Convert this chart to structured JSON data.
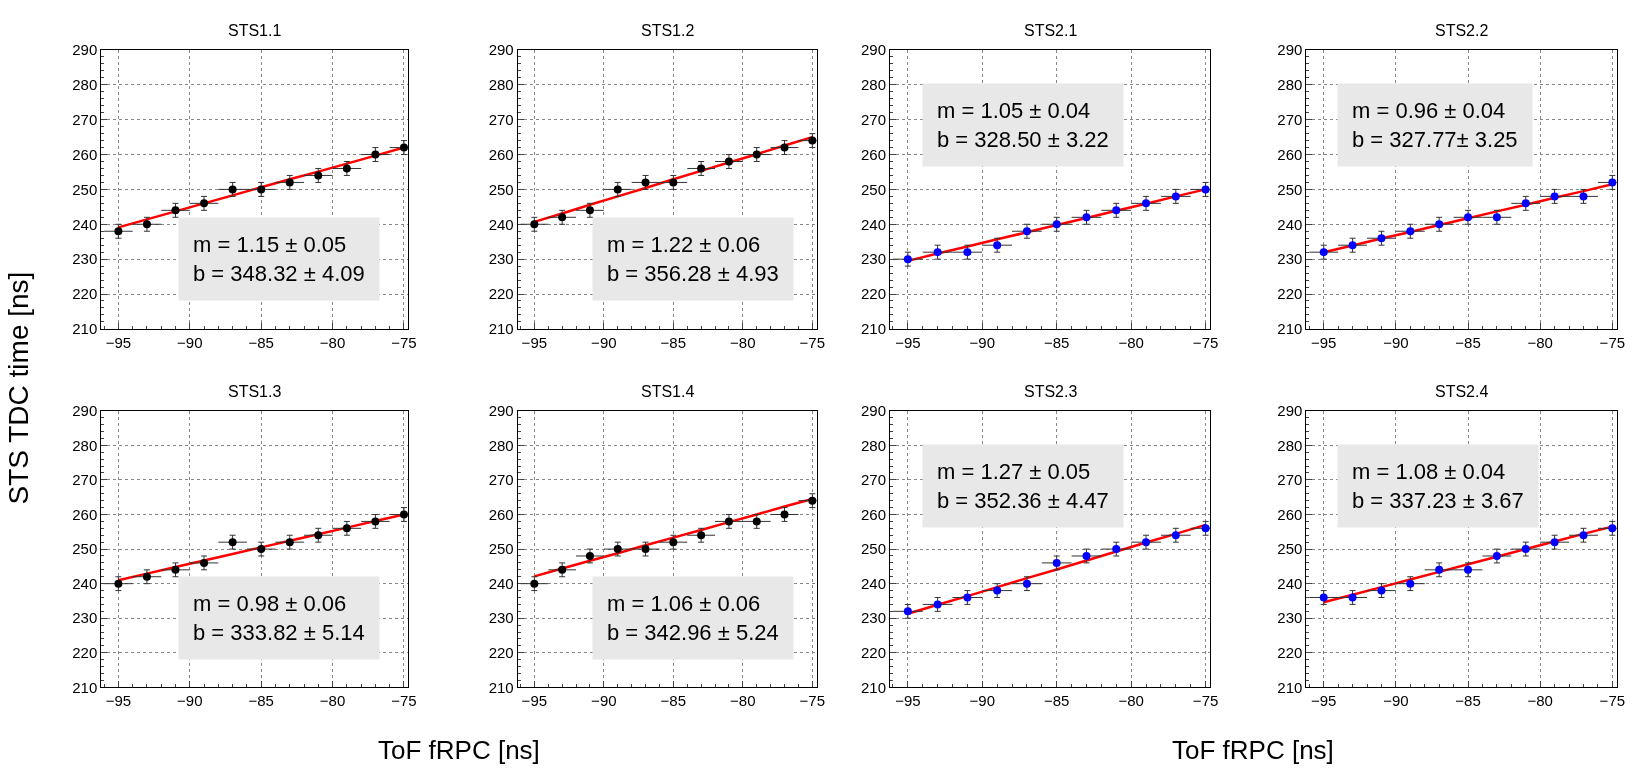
{
  "chart_data": [
    {
      "type": "scatter",
      "title": "STS1.1",
      "ylabel": "STS TDC time [ns]",
      "xlim": [
        -96.2,
        -74.7
      ],
      "ylim": [
        210,
        290
      ],
      "xticks": [
        -95,
        -90,
        -85,
        -80,
        -75
      ],
      "yticks": [
        210,
        220,
        230,
        240,
        250,
        260,
        270,
        280,
        290
      ],
      "grid": true,
      "annotations": [
        "m = 1.15 ± 0.05\nb = 348.32 ± 4.09"
      ],
      "x": [
        -95,
        -93,
        -91,
        -89,
        -87,
        -85,
        -83,
        -81,
        -79,
        -77,
        -75
      ],
      "series": [
        {
          "type": "line",
          "color": "#ff0000",
          "marker": "none",
          "line_style": "solid",
          "values": [
            239.1,
            241.4,
            243.7,
            246.0,
            248.3,
            250.6,
            252.9,
            255.1,
            257.4,
            259.7,
            262.0
          ]
        },
        {
          "color": "#000000",
          "marker": "circle",
          "values": [
            238,
            240,
            244,
            246,
            250,
            250,
            252,
            254,
            256,
            260,
            262
          ],
          "errors": [
            2,
            2,
            2,
            2,
            2,
            2,
            2,
            2,
            2,
            2,
            2
          ],
          "xerrors": [
            1,
            1,
            1,
            1,
            1,
            1,
            1,
            1,
            1,
            1,
            1
          ]
        }
      ]
    },
    {
      "type": "scatter",
      "title": "STS1.2",
      "xlim": [
        -96.2,
        -74.7
      ],
      "ylim": [
        210,
        290
      ],
      "xticks": [
        -95,
        -90,
        -85,
        -80,
        -75
      ],
      "yticks": [
        210,
        220,
        230,
        240,
        250,
        260,
        270,
        280,
        290
      ],
      "grid": true,
      "annotations": [
        "m = 1.22 ± 0.06\nb = 356.28 ± 4.93"
      ],
      "x": [
        -95,
        -93,
        -91,
        -89,
        -87,
        -85,
        -83,
        -81,
        -79,
        -77,
        -75
      ],
      "series": [
        {
          "type": "line",
          "color": "#ff0000",
          "marker": "none",
          "line_style": "solid",
          "values": [
            240.7,
            243.1,
            245.6,
            248.0,
            250.4,
            252.9,
            255.3,
            257.7,
            260.1,
            262.6,
            265.0
          ]
        },
        {
          "color": "#000000",
          "marker": "circle",
          "values": [
            240,
            242,
            244,
            250,
            252,
            252,
            256,
            258,
            260,
            262,
            264
          ],
          "errors": [
            2,
            2,
            2,
            2,
            2,
            2,
            2,
            2,
            2,
            2,
            2
          ],
          "xerrors": [
            1,
            1,
            1,
            1,
            1,
            1,
            1,
            1,
            1,
            1,
            1
          ]
        }
      ]
    },
    {
      "type": "scatter",
      "title": "STS2.1",
      "xlim": [
        -96.2,
        -74.7
      ],
      "ylim": [
        210,
        290
      ],
      "xticks": [
        -95,
        -90,
        -85,
        -80,
        -75
      ],
      "yticks": [
        210,
        220,
        230,
        240,
        250,
        260,
        270,
        280,
        290
      ],
      "grid": true,
      "annotations": [
        "m = 1.05 ± 0.04\nb = 328.50 ± 3.22"
      ],
      "x": [
        -95,
        -93,
        -91,
        -89,
        -87,
        -85,
        -83,
        -81,
        -79,
        -77,
        -75
      ],
      "series": [
        {
          "type": "line",
          "color": "#ff0000",
          "marker": "none",
          "line_style": "solid",
          "values": [
            229.5,
            231.6,
            233.6,
            235.7,
            237.7,
            239.8,
            241.8,
            243.9,
            245.9,
            248.0,
            250.0
          ]
        },
        {
          "color": "#0000ff",
          "marker": "circle",
          "values": [
            230,
            232,
            232,
            234,
            238,
            240,
            242,
            244,
            246,
            248,
            250
          ],
          "errors": [
            2,
            2,
            2,
            2,
            2,
            2,
            2,
            2,
            2,
            2,
            2
          ],
          "xerrors": [
            1,
            1,
            1,
            1,
            1,
            1,
            1,
            1,
            1,
            1,
            1
          ]
        }
      ]
    },
    {
      "type": "scatter",
      "title": "STS2.2",
      "xlim": [
        -96.2,
        -74.7
      ],
      "ylim": [
        210,
        290
      ],
      "xticks": [
        -95,
        -90,
        -85,
        -80,
        -75
      ],
      "yticks": [
        210,
        220,
        230,
        240,
        250,
        260,
        270,
        280,
        290
      ],
      "grid": true,
      "annotations": [
        "m = 0.96 ± 0.04\nb = 327.77± 3.25"
      ],
      "x": [
        -95,
        -93,
        -91,
        -89,
        -87,
        -85,
        -83,
        -81,
        -79,
        -77,
        -75
      ],
      "series": [
        {
          "type": "line",
          "color": "#ff0000",
          "marker": "none",
          "line_style": "solid",
          "values": [
            232.0,
            233.9,
            235.9,
            237.8,
            239.8,
            241.7,
            243.7,
            245.6,
            247.6,
            249.5,
            251.5
          ]
        },
        {
          "color": "#0000ff",
          "marker": "circle",
          "values": [
            232,
            234,
            236,
            238,
            240,
            242,
            242,
            246,
            248,
            248,
            252
          ],
          "errors": [
            2,
            2,
            2,
            2,
            2,
            2,
            2,
            2,
            2,
            2,
            2
          ],
          "xerrors": [
            1,
            1,
            1,
            1,
            1,
            1,
            1,
            1,
            1,
            1,
            1
          ]
        }
      ]
    },
    {
      "type": "scatter",
      "title": "STS1.3",
      "xlabel": "ToF fRPC [ns]",
      "xlim": [
        -96.2,
        -74.7
      ],
      "ylim": [
        210,
        290
      ],
      "xticks": [
        -95,
        -90,
        -85,
        -80,
        -75
      ],
      "yticks": [
        210,
        220,
        230,
        240,
        250,
        260,
        270,
        280,
        290
      ],
      "grid": true,
      "annotations": [
        "m = 0.98 ± 0.06\nb = 333.82 ± 5.14"
      ],
      "x": [
        -95,
        -93,
        -91,
        -89,
        -87,
        -85,
        -83,
        -81,
        -79,
        -77,
        -75
      ],
      "series": [
        {
          "type": "line",
          "color": "#ff0000",
          "marker": "none",
          "line_style": "solid",
          "values": [
            241.0,
            242.9,
            244.8,
            246.7,
            248.6,
            250.5,
            252.4,
            254.3,
            256.2,
            258.1,
            260.0
          ]
        },
        {
          "color": "#000000",
          "marker": "circle",
          "values": [
            240,
            242,
            244,
            246,
            252,
            250,
            252,
            254,
            256,
            258,
            260
          ],
          "errors": [
            2,
            2,
            2,
            2,
            2,
            2,
            2,
            2,
            2,
            2,
            2
          ],
          "xerrors": [
            1,
            1,
            1,
            1,
            1,
            1,
            1,
            1,
            1,
            1,
            1
          ]
        }
      ]
    },
    {
      "type": "scatter",
      "title": "STS1.4",
      "xlim": [
        -96.2,
        -74.7
      ],
      "ylim": [
        210,
        290
      ],
      "xticks": [
        -95,
        -90,
        -85,
        -80,
        -75
      ],
      "yticks": [
        210,
        220,
        230,
        240,
        250,
        260,
        270,
        280,
        290
      ],
      "grid": true,
      "annotations": [
        "m = 1.06 ± 0.06\nb = 342.96 ± 5.24"
      ],
      "x": [
        -95,
        -93,
        -91,
        -89,
        -87,
        -85,
        -83,
        -81,
        -79,
        -77,
        -75
      ],
      "series": [
        {
          "type": "line",
          "color": "#ff0000",
          "marker": "none",
          "line_style": "solid",
          "values": [
            242.1,
            244.4,
            246.6,
            248.8,
            251.1,
            253.3,
            255.5,
            257.8,
            260.0,
            262.3,
            264.5
          ]
        },
        {
          "color": "#000000",
          "marker": "circle",
          "values": [
            240,
            244,
            248,
            250,
            250,
            252,
            254,
            258,
            258,
            260,
            264
          ],
          "errors": [
            2,
            2,
            2,
            2,
            2,
            2,
            2,
            2,
            2,
            2,
            2
          ],
          "xerrors": [
            1,
            1,
            1,
            1,
            1,
            1,
            1,
            1,
            1,
            1,
            1
          ]
        }
      ]
    },
    {
      "type": "scatter",
      "title": "STS2.3",
      "xlabel": "ToF fRPC [ns]",
      "xlim": [
        -96.2,
        -74.7
      ],
      "ylim": [
        210,
        290
      ],
      "xticks": [
        -95,
        -90,
        -85,
        -80,
        -75
      ],
      "yticks": [
        210,
        220,
        230,
        240,
        250,
        260,
        270,
        280,
        290
      ],
      "grid": true,
      "annotations": [
        "m = 1.27 ± 0.05\nb = 352.36 ± 4.47"
      ],
      "x": [
        -95,
        -93,
        -91,
        -89,
        -87,
        -85,
        -83,
        -81,
        -79,
        -77,
        -75
      ],
      "series": [
        {
          "type": "line",
          "color": "#ff0000",
          "marker": "none",
          "line_style": "solid",
          "values": [
            231.3,
            233.9,
            236.4,
            239.0,
            241.6,
            244.1,
            246.7,
            249.3,
            251.9,
            254.4,
            257.0
          ]
        },
        {
          "color": "#0000ff",
          "marker": "circle",
          "values": [
            232,
            234,
            236,
            238,
            240,
            246,
            248,
            250,
            252,
            254,
            256
          ],
          "errors": [
            2,
            2,
            2,
            2,
            2,
            2,
            2,
            2,
            2,
            2,
            2
          ],
          "xerrors": [
            1,
            1,
            1,
            1,
            1,
            1,
            1,
            1,
            1,
            1,
            1
          ]
        }
      ]
    },
    {
      "type": "scatter",
      "title": "STS2.4",
      "xlim": [
        -96.2,
        -74.7
      ],
      "ylim": [
        210,
        290
      ],
      "xticks": [
        -95,
        -90,
        -85,
        -80,
        -75
      ],
      "yticks": [
        210,
        220,
        230,
        240,
        250,
        260,
        270,
        280,
        290
      ],
      "grid": true,
      "annotations": [
        "m = 1.08 ± 0.04\nb = 337.23 ± 3.67"
      ],
      "x": [
        -95,
        -93,
        -91,
        -89,
        -87,
        -85,
        -83,
        -81,
        -79,
        -77,
        -75
      ],
      "series": [
        {
          "type": "line",
          "color": "#ff0000",
          "marker": "none",
          "line_style": "solid",
          "values": [
            234.6,
            236.8,
            239.0,
            241.2,
            243.4,
            245.6,
            247.8,
            250.0,
            252.2,
            254.4,
            256.5
          ]
        },
        {
          "color": "#0000ff",
          "marker": "circle",
          "values": [
            236,
            236,
            238,
            240,
            244,
            244,
            248,
            250,
            252,
            254,
            256
          ],
          "errors": [
            2,
            2,
            2,
            2,
            2,
            2,
            2,
            2,
            2,
            2,
            2
          ],
          "xerrors": [
            1,
            1,
            1,
            1,
            1,
            1,
            1,
            1,
            1,
            1,
            1
          ]
        }
      ]
    }
  ]
}
